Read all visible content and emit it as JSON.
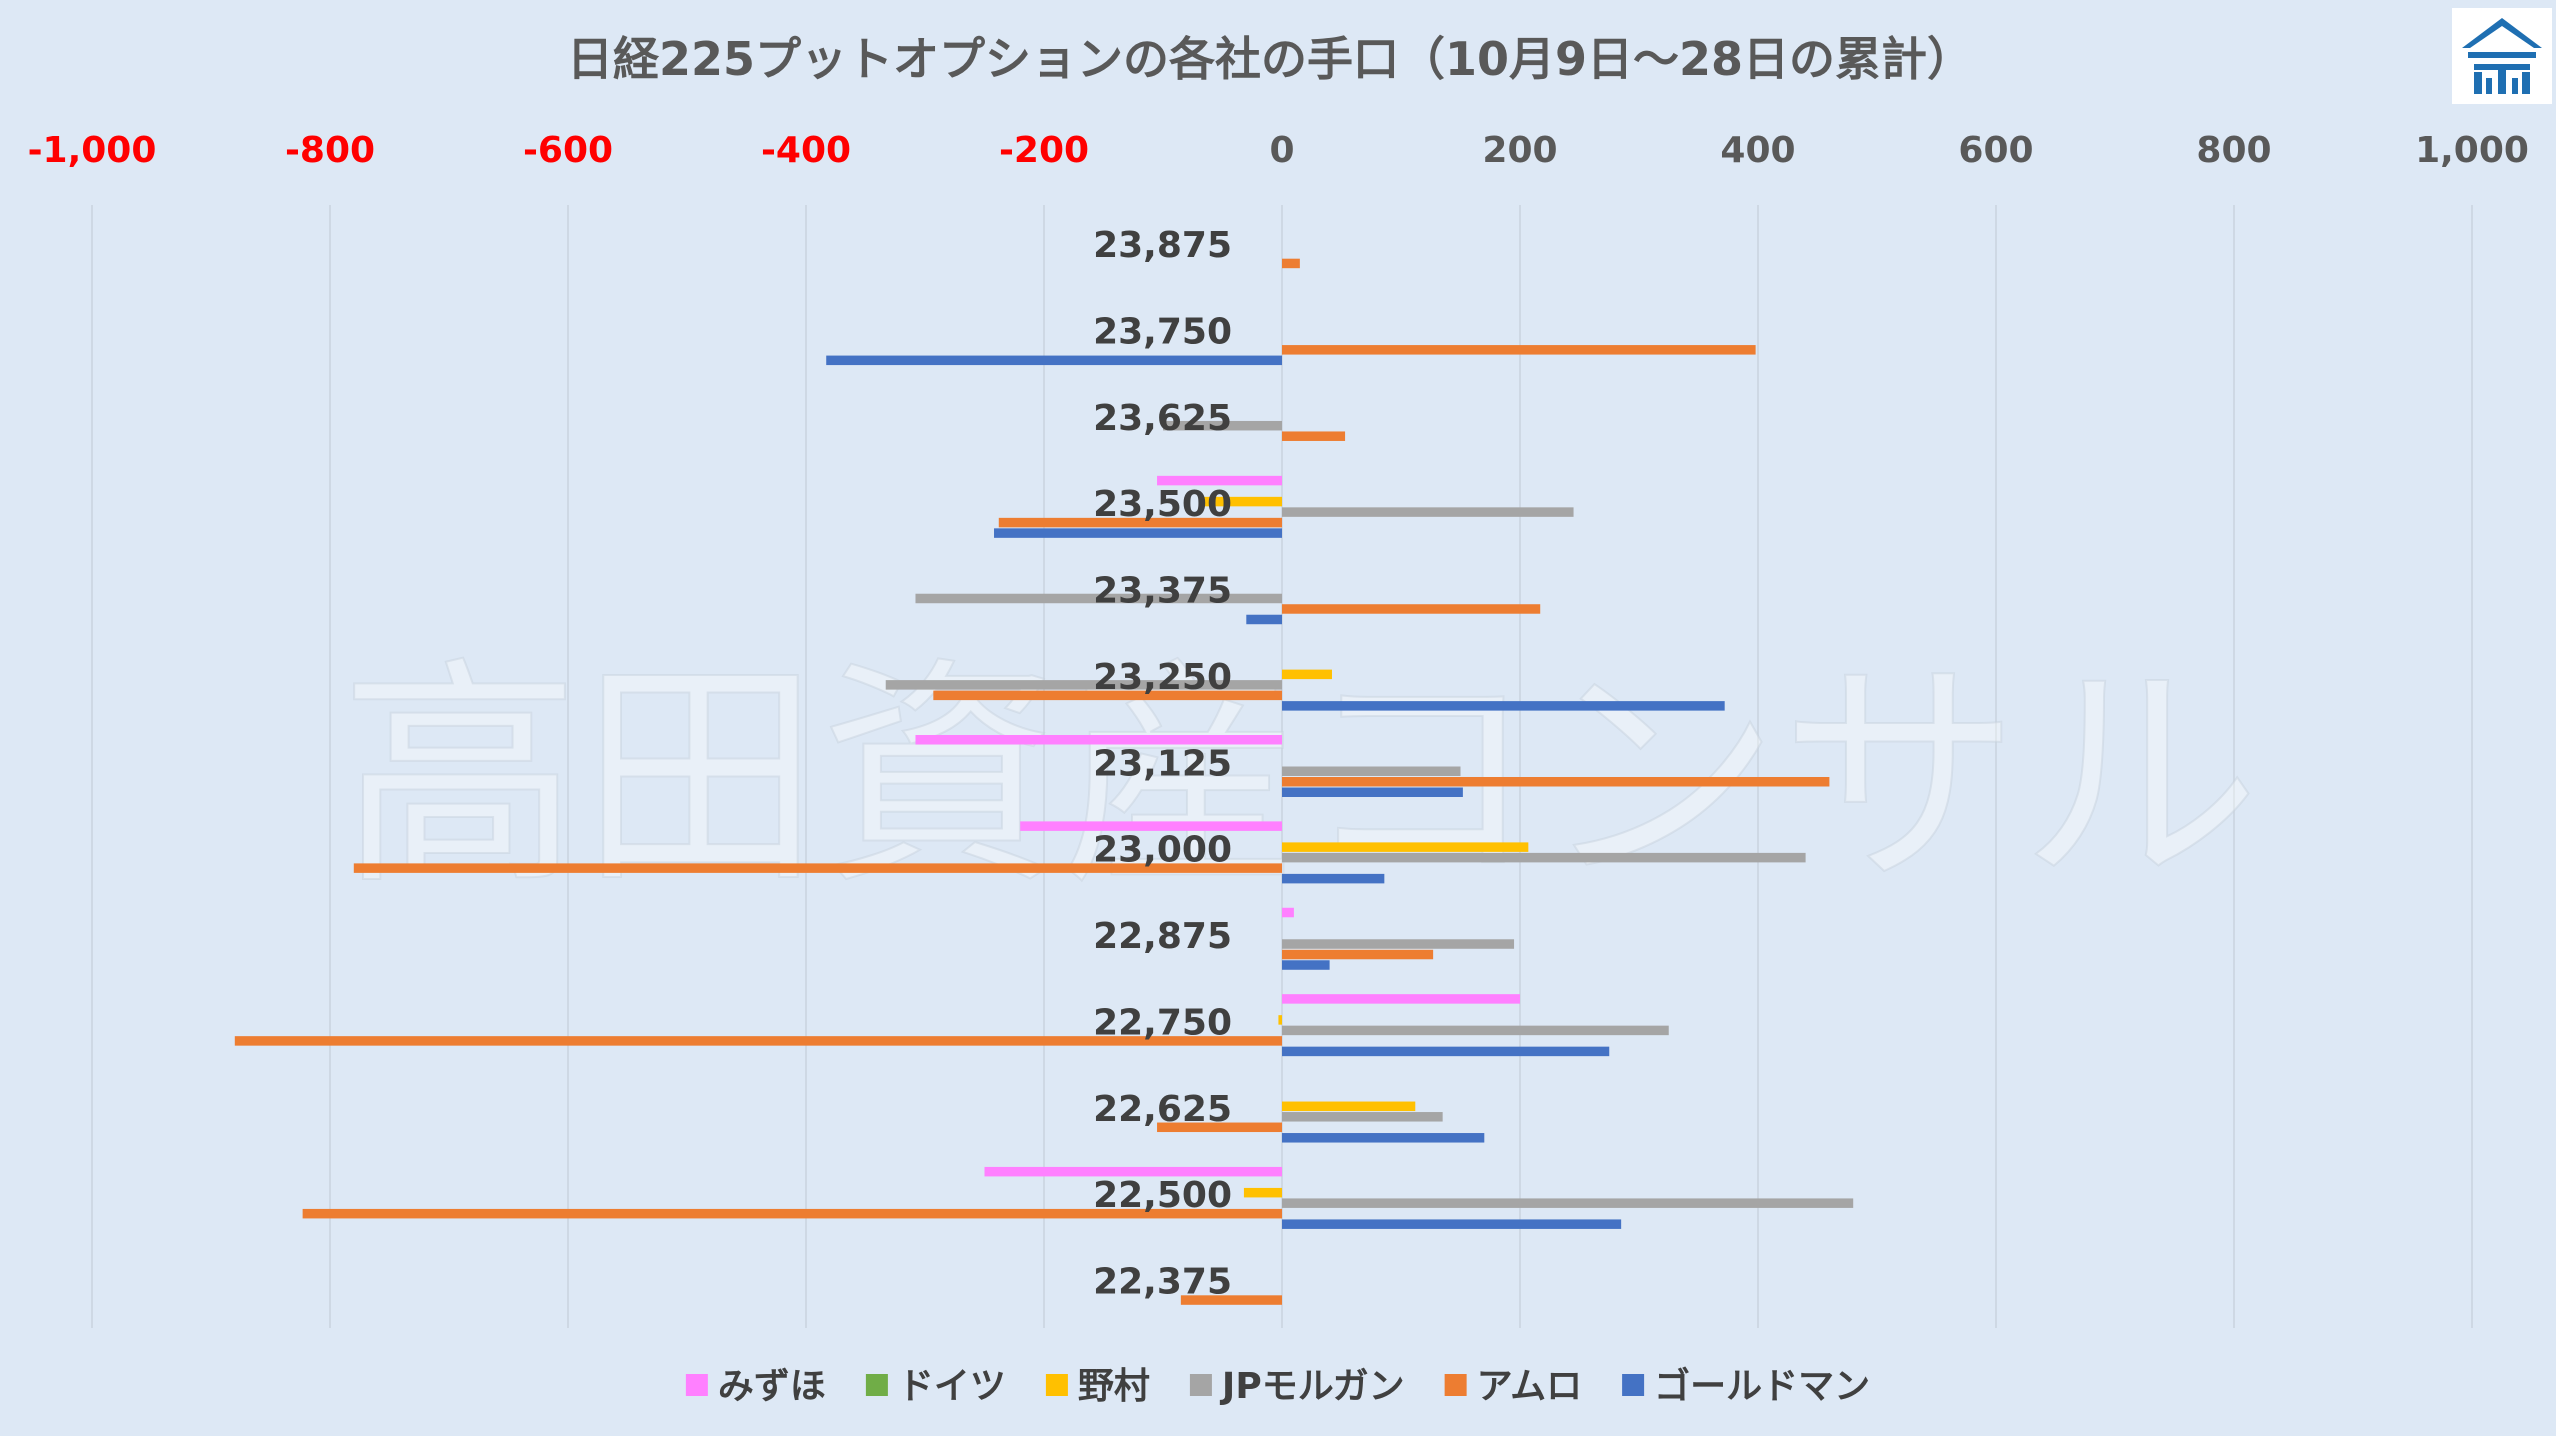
{
  "chart_data": {
    "type": "bar",
    "orientation": "horizontal",
    "title": "日経225プットオプションの各社の手口（10月9日～28日の累計）",
    "watermark": "高田資産コンサル",
    "logo": "logo-icon",
    "xlim": [
      -1000,
      1000
    ],
    "xticks": [
      -1000,
      -800,
      -600,
      -400,
      -200,
      0,
      200,
      400,
      600,
      800,
      1000
    ],
    "xtick_labels": [
      "-1,000",
      "-800",
      "-600",
      "-400",
      "-200",
      "0",
      "200",
      "400",
      "600",
      "800",
      "1,000"
    ],
    "negative_tick_color": "#ff0000",
    "positive_tick_color": "#595959",
    "grid": true,
    "legend_position": "bottom",
    "categories": [
      "23,875",
      "23,750",
      "23,625",
      "23,500",
      "23,375",
      "23,250",
      "23,125",
      "23,000",
      "22,875",
      "22,750",
      "22,625",
      "22,500",
      "22,375"
    ],
    "series": [
      {
        "name": "みずほ",
        "color": "#ff80ff",
        "values": [
          0,
          0,
          0,
          -105,
          0,
          0,
          -308,
          -220,
          10,
          200,
          0,
          -250,
          0
        ]
      },
      {
        "name": "ドイツ",
        "color": "#70ad47",
        "values": [
          0,
          0,
          0,
          0,
          0,
          0,
          0,
          0,
          0,
          0,
          0,
          0,
          0
        ]
      },
      {
        "name": "野村",
        "color": "#ffc000",
        "values": [
          0,
          0,
          0,
          -70,
          0,
          42,
          0,
          207,
          0,
          -3,
          112,
          -32,
          0
        ]
      },
      {
        "name": "JPモルガン",
        "color": "#a5a5a5",
        "values": [
          0,
          0,
          -100,
          245,
          -308,
          -333,
          150,
          440,
          195,
          325,
          135,
          480,
          0
        ]
      },
      {
        "name": "アムロ",
        "color": "#ed7d31",
        "values": [
          15,
          398,
          53,
          -238,
          217,
          -293,
          460,
          -780,
          127,
          -880,
          -105,
          -823,
          -85
        ]
      },
      {
        "name": "ゴールドマン",
        "color": "#4472c4",
        "values": [
          0,
          -383,
          0,
          -242,
          -30,
          372,
          152,
          86,
          40,
          275,
          170,
          285,
          0
        ]
      }
    ]
  }
}
